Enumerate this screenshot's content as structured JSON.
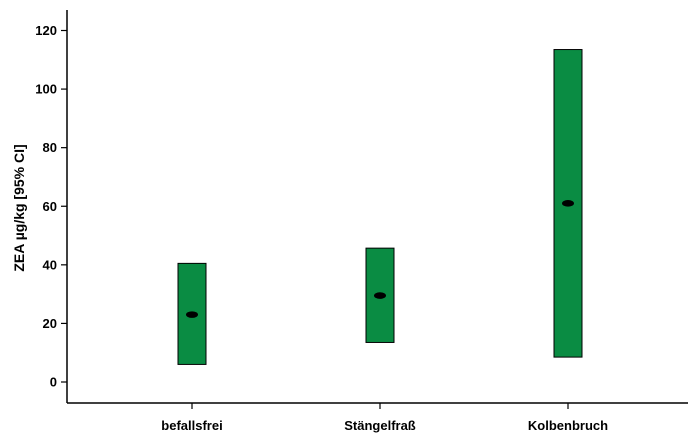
{
  "chart_data": {
    "type": "error-bar",
    "ylabel": "ZEA µg/kg [95% CI]",
    "xlabel": "",
    "ylim": [
      -8,
      124
    ],
    "yticks": [
      0,
      20,
      40,
      60,
      80,
      100,
      120
    ],
    "categories": [
      "befallsfrei",
      "Stängelfraß",
      "Kolbenbruch"
    ],
    "series": [
      {
        "mean": [
          23,
          29.5,
          61
        ],
        "lower": [
          6,
          13.5,
          8.5
        ],
        "upper": [
          40.5,
          45.7,
          113.5
        ]
      }
    ],
    "grid": false,
    "bar_color": "#0a8c43",
    "marker_color": "#000000"
  }
}
